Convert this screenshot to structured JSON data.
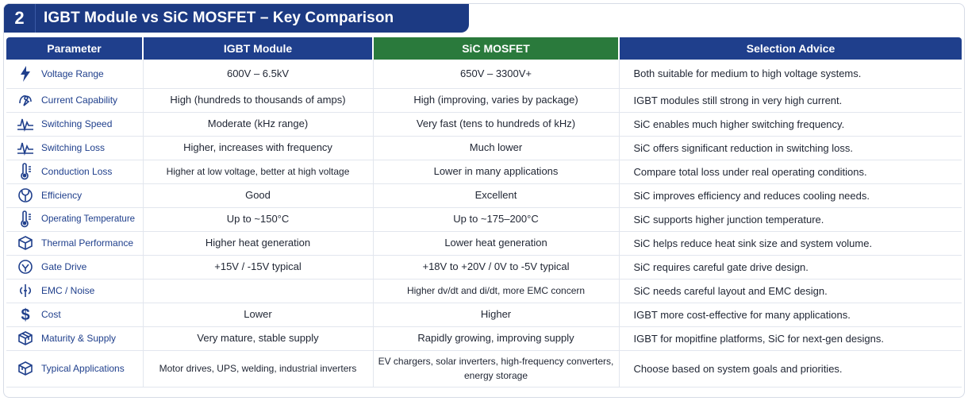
{
  "header": {
    "number": "2",
    "title": "IGBT Module vs SiC MOSFET – Key Comparison"
  },
  "columns": {
    "parameter": "Parameter",
    "igbt": "IGBT Module",
    "sic": "SiC MOSFET",
    "advice": "Selection Advice"
  },
  "colors": {
    "igbt_header": "#1f3f8c",
    "sic_header": "#2a7a3c",
    "accent": "#1c3a83"
  },
  "rows": [
    {
      "icon": "lightning-icon",
      "parameter": "Voltage Range",
      "igbt": "600V – 6.5kV",
      "sic": "650V – 3300V+",
      "advice": "Both suitable for medium to high voltage systems."
    },
    {
      "icon": "current-icon",
      "parameter": "Current Capability",
      "igbt": "High (hundreds to thousands of amps)",
      "sic": "High (improving, varies by package)",
      "advice": "IGBT modules still strong in very high current."
    },
    {
      "icon": "waveform-icon",
      "parameter": "Switching Speed",
      "igbt": "Moderate (kHz range)",
      "sic": "Very fast (tens to hundreds of kHz)",
      "advice": "SiC enables much higher switching frequency."
    },
    {
      "icon": "waveform-icon",
      "parameter": "Switching Loss",
      "igbt": "Higher, increases with frequency",
      "sic": "Much lower",
      "advice": "SiC offers significant reduction in switching loss."
    },
    {
      "icon": "thermometer-icon",
      "parameter": "Conduction Loss",
      "igbt": "Higher at low voltage, better at high voltage",
      "sic": "Lower in many applications",
      "advice": "Compare total loss under real operating conditions."
    },
    {
      "icon": "efficiency-icon",
      "parameter": "Efficiency",
      "igbt": "Good",
      "sic": "Excellent",
      "advice": "SiC improves efficiency and reduces cooling needs."
    },
    {
      "icon": "thermometer-icon",
      "parameter": "Operating Temperature",
      "igbt": "Up to ~150°C",
      "sic": "Up to ~175–200°C",
      "advice": "SiC supports higher junction temperature."
    },
    {
      "icon": "cube-icon",
      "parameter": "Thermal Performance",
      "igbt": "Higher heat generation",
      "sic": "Lower heat generation",
      "advice": "SiC helps reduce heat sink size and system volume."
    },
    {
      "icon": "gate-icon",
      "parameter": "Gate Drive",
      "igbt": "+15V / -15V typical",
      "sic": "+18V to +20V / 0V to -5V typical",
      "advice": "SiC requires careful gate drive design."
    },
    {
      "icon": "emc-icon",
      "parameter": "EMC / Noise",
      "igbt": "",
      "sic": "Higher dv/dt and di/dt, more EMC concern",
      "advice": "SiC needs careful layout and EMC design."
    },
    {
      "icon": "dollar-icon",
      "parameter": "Cost",
      "igbt": "Lower",
      "sic": "Higher",
      "advice": "IGBT more cost-effective for many applications."
    },
    {
      "icon": "package-icon",
      "parameter": "Maturity & Supply",
      "igbt": "Very mature, stable supply",
      "sic": "Rapidly growing, improving supply",
      "advice": "IGBT for mopitfine platforms, SiC for next-gen designs."
    },
    {
      "icon": "box-icon",
      "parameter": "Typical Applications",
      "igbt": "Motor drives, UPS, welding, industrial inverters",
      "sic": "EV chargers, solar inverters, high-frequency converters, energy storage",
      "advice": "Choose based on system goals and priorities."
    }
  ]
}
